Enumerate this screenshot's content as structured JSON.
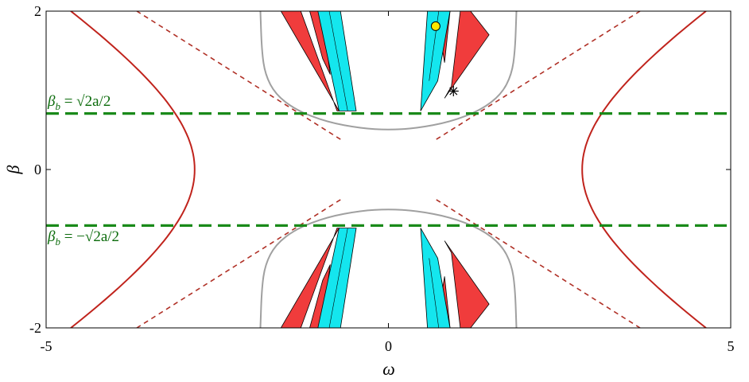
{
  "chart_data": {
    "type": "line",
    "xlabel": "ω",
    "ylabel": "β",
    "xlim": [
      -5,
      5
    ],
    "ylim": [
      -2,
      2
    ],
    "x_ticks": [
      {
        "value": -5,
        "label": "-5"
      },
      {
        "value": 0,
        "label": "0"
      },
      {
        "value": 5,
        "label": "5"
      }
    ],
    "y_ticks": [
      {
        "value": -2,
        "label": "-2"
      },
      {
        "value": 0,
        "label": "0"
      },
      {
        "value": 2,
        "label": "2"
      }
    ],
    "grid": false,
    "colors": {
      "hyperbola": "#c0231c",
      "asymptote": "#b03026",
      "gray_boundary": "#a0a0a0",
      "threshold": "#1a8a1a",
      "red_region": "#f03c3c",
      "cyan_region": "#14e6ee",
      "marker_circle": "#ffe800"
    },
    "hyperbola": {
      "a": 2.83,
      "b": 1.54
    },
    "threshold_lines": [
      {
        "y": 0.707,
        "label_base": "β",
        "label_sub": "b",
        "label_rest": " = √2a/2"
      },
      {
        "y": -0.707,
        "label_base": "β",
        "label_sub": "b",
        "label_rest": " = −√2a/2"
      }
    ],
    "gray_boundary_upper": [
      [
        -1.87,
        2.0
      ],
      [
        -1.85,
        1.5
      ],
      [
        -1.8,
        1.2
      ],
      [
        -1.65,
        0.95
      ],
      [
        -1.35,
        0.75
      ],
      [
        -0.9,
        0.6
      ],
      [
        -0.4,
        0.52
      ],
      [
        0,
        0.5
      ],
      [
        0.4,
        0.52
      ],
      [
        0.9,
        0.6
      ],
      [
        1.35,
        0.75
      ],
      [
        1.65,
        0.95
      ],
      [
        1.8,
        1.2
      ],
      [
        1.85,
        1.5
      ],
      [
        1.87,
        2.0
      ]
    ],
    "red_regions": [
      [
        [
          -1.57,
          2.0
        ],
        [
          -1.28,
          2.0
        ],
        [
          -0.75,
          0.74
        ],
        [
          -0.72,
          0.74
        ]
      ],
      [
        [
          -1.15,
          2.0
        ],
        [
          -0.97,
          2.0
        ],
        [
          -0.85,
          1.2
        ],
        [
          -0.96,
          1.4
        ]
      ],
      [
        [
          0.7,
          2.0
        ],
        [
          0.9,
          2.0
        ],
        [
          0.82,
          1.35
        ]
      ],
      [
        [
          1.05,
          2.0
        ],
        [
          1.2,
          2.0
        ],
        [
          1.47,
          1.7
        ],
        [
          0.82,
          0.9
        ],
        [
          0.92,
          1.05
        ]
      ]
    ],
    "cyan_regions": [
      [
        [
          -1.03,
          2.0
        ],
        [
          -0.7,
          2.0
        ],
        [
          -0.47,
          0.74
        ],
        [
          -0.72,
          0.74
        ]
      ],
      [
        [
          0.57,
          2.0
        ],
        [
          0.9,
          2.0
        ],
        [
          0.72,
          1.12
        ],
        [
          0.47,
          0.74
        ]
      ]
    ],
    "points": [
      {
        "name": "yellow-circle",
        "x": 0.69,
        "y": 1.81
      },
      {
        "name": "star",
        "x": 0.95,
        "y": 0.99
      }
    ]
  }
}
